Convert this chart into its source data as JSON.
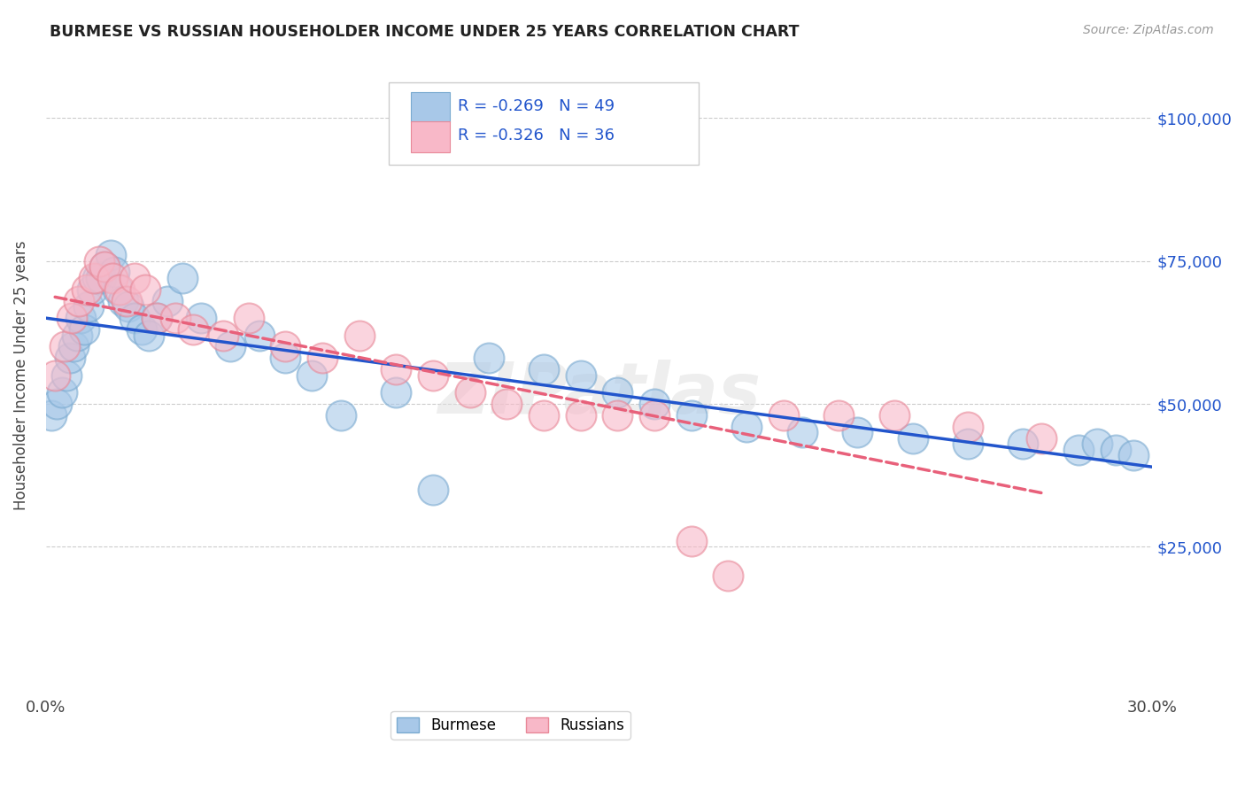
{
  "title": "BURMESE VS RUSSIAN HOUSEHOLDER INCOME UNDER 25 YEARS CORRELATION CHART",
  "source": "Source: ZipAtlas.com",
  "ylabel": "Householder Income Under 25 years",
  "yticks": [
    25000,
    50000,
    75000,
    100000
  ],
  "ytick_labels": [
    "$25,000",
    "$50,000",
    "$75,000",
    "$100,000"
  ],
  "legend_burmese": "Burmese",
  "legend_russians": "Russians",
  "r_burmese": "-0.269",
  "n_burmese": "49",
  "r_russians": "-0.326",
  "n_russians": "36",
  "color_burmese_fill": "#a8c8e8",
  "color_burmese_edge": "#7aaad0",
  "color_russian_fill": "#f8b8c8",
  "color_russian_edge": "#e88898",
  "color_line_blue": "#2255cc",
  "color_line_pink": "#e8607a",
  "color_blue_text": "#2255cc",
  "color_n_text": "#22aacc",
  "burmese_x": [
    0.15,
    0.3,
    0.45,
    0.55,
    0.65,
    0.75,
    0.85,
    0.95,
    1.05,
    1.15,
    1.25,
    1.4,
    1.5,
    1.6,
    1.75,
    1.85,
    1.95,
    2.1,
    2.25,
    2.4,
    2.6,
    2.8,
    3.0,
    3.3,
    3.7,
    4.2,
    5.0,
    5.8,
    6.5,
    7.2,
    8.0,
    9.5,
    10.5,
    12.0,
    13.5,
    14.5,
    15.5,
    16.5,
    17.5,
    19.0,
    20.5,
    22.0,
    23.5,
    25.0,
    26.5,
    28.0,
    28.5,
    29.0,
    29.5
  ],
  "burmese_y": [
    48000,
    50000,
    52000,
    55000,
    58000,
    60000,
    62000,
    65000,
    63000,
    67000,
    70000,
    72000,
    72000,
    74000,
    76000,
    73000,
    70000,
    68000,
    67000,
    65000,
    63000,
    62000,
    65000,
    68000,
    72000,
    65000,
    60000,
    62000,
    58000,
    55000,
    48000,
    52000,
    35000,
    58000,
    56000,
    55000,
    52000,
    50000,
    48000,
    46000,
    45000,
    45000,
    44000,
    43000,
    43000,
    42000,
    43000,
    42000,
    41000
  ],
  "russian_x": [
    0.25,
    0.5,
    0.7,
    0.9,
    1.1,
    1.3,
    1.45,
    1.6,
    1.8,
    2.0,
    2.2,
    2.4,
    2.7,
    3.0,
    3.5,
    4.0,
    4.8,
    5.5,
    6.5,
    7.5,
    8.5,
    9.5,
    10.5,
    11.5,
    12.5,
    13.5,
    14.5,
    15.5,
    16.5,
    17.5,
    18.5,
    20.0,
    21.5,
    23.0,
    25.0,
    27.0
  ],
  "russian_y": [
    55000,
    60000,
    65000,
    68000,
    70000,
    72000,
    75000,
    74000,
    72000,
    70000,
    68000,
    72000,
    70000,
    65000,
    65000,
    63000,
    62000,
    65000,
    60000,
    58000,
    62000,
    56000,
    55000,
    52000,
    50000,
    48000,
    48000,
    48000,
    48000,
    26000,
    20000,
    48000,
    48000,
    48000,
    46000,
    44000
  ],
  "xmin": 0.0,
  "xmax": 30.0,
  "ymin": 0,
  "ymax": 110000,
  "dot_size": 600
}
